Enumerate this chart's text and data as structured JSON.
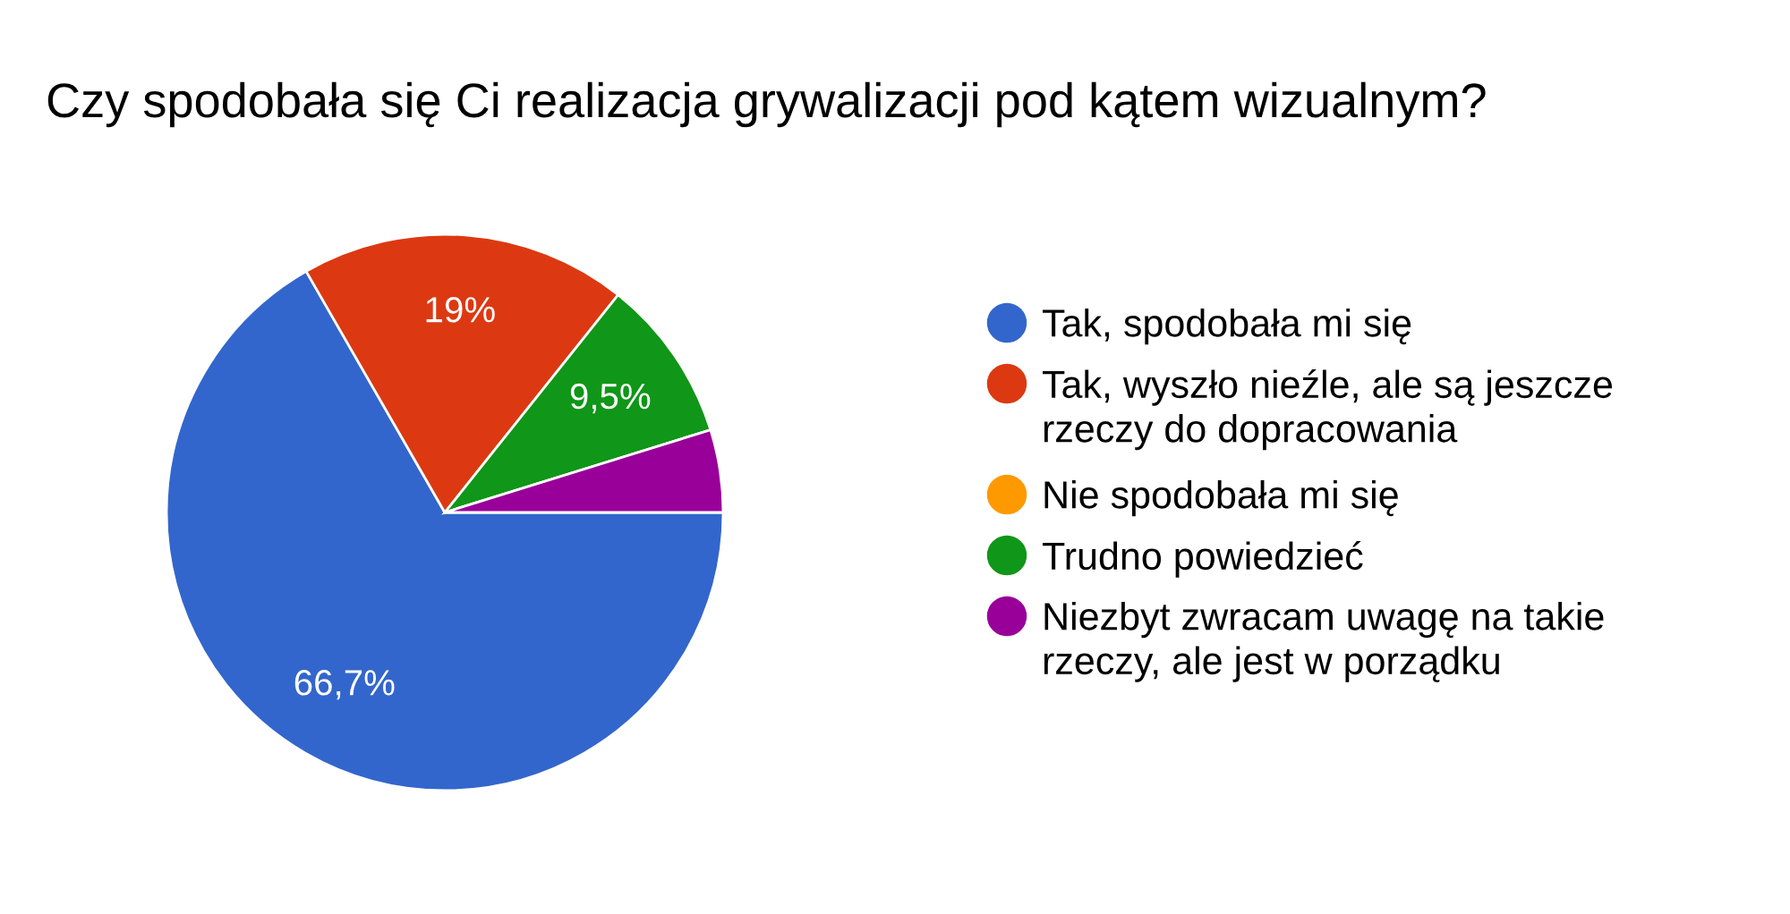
{
  "chart_data": {
    "type": "pie",
    "title": "Czy spodobała się Ci realizacja grywalizacji pod kątem wizualnym?",
    "categories": [
      "Tak, spodobała mi się",
      "Tak, wyszło nieźle, ale są jeszcze rzeczy do dopracowania",
      "Nie spodobała mi się",
      "Trudno powiedzieć",
      "Niezbyt zwracam uwagę na takie rzeczy, ale jest w porządku"
    ],
    "values": [
      66.7,
      19,
      0,
      9.5,
      4.8
    ],
    "colors": [
      "#3366cc",
      "#dc3912",
      "#ff9900",
      "#109618",
      "#990099"
    ],
    "value_labels": [
      "66,7%",
      "19%",
      null,
      "9,5%",
      null
    ],
    "legend": "right"
  }
}
